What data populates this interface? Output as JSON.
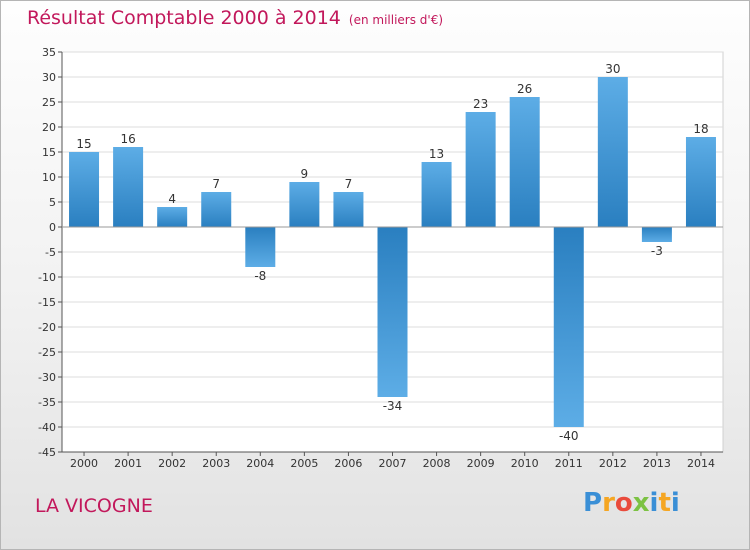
{
  "chart_data": {
    "type": "bar",
    "title": "Résultat Comptable 2000 à 2014",
    "subtitle": "(en milliers d'€)",
    "categories": [
      "2000",
      "2001",
      "2002",
      "2003",
      "2004",
      "2005",
      "2006",
      "2007",
      "2008",
      "2009",
      "2010",
      "2011",
      "2012",
      "2013",
      "2014"
    ],
    "values": [
      15,
      16,
      4,
      7,
      -8,
      9,
      7,
      -34,
      13,
      23,
      26,
      -40,
      30,
      -3,
      18
    ],
    "ylim": [
      -45,
      35
    ],
    "yticks": [
      35,
      30,
      25,
      20,
      15,
      10,
      5,
      0,
      -5,
      -10,
      -15,
      -20,
      -25,
      -30,
      -35,
      -40,
      -45
    ],
    "grid": "horizontal",
    "xlabel": "",
    "ylabel": ""
  },
  "commune": "LA VICOGNE",
  "brand": {
    "name": "Proxiti",
    "letters": [
      "P",
      "r",
      "o",
      "x",
      "i",
      "t",
      "i"
    ]
  },
  "colors": {
    "title": "#c2185b",
    "bar_light": "#5dade6",
    "bar_dark": "#2a7fc0",
    "grid": "#dddddd",
    "axis": "#555555"
  }
}
